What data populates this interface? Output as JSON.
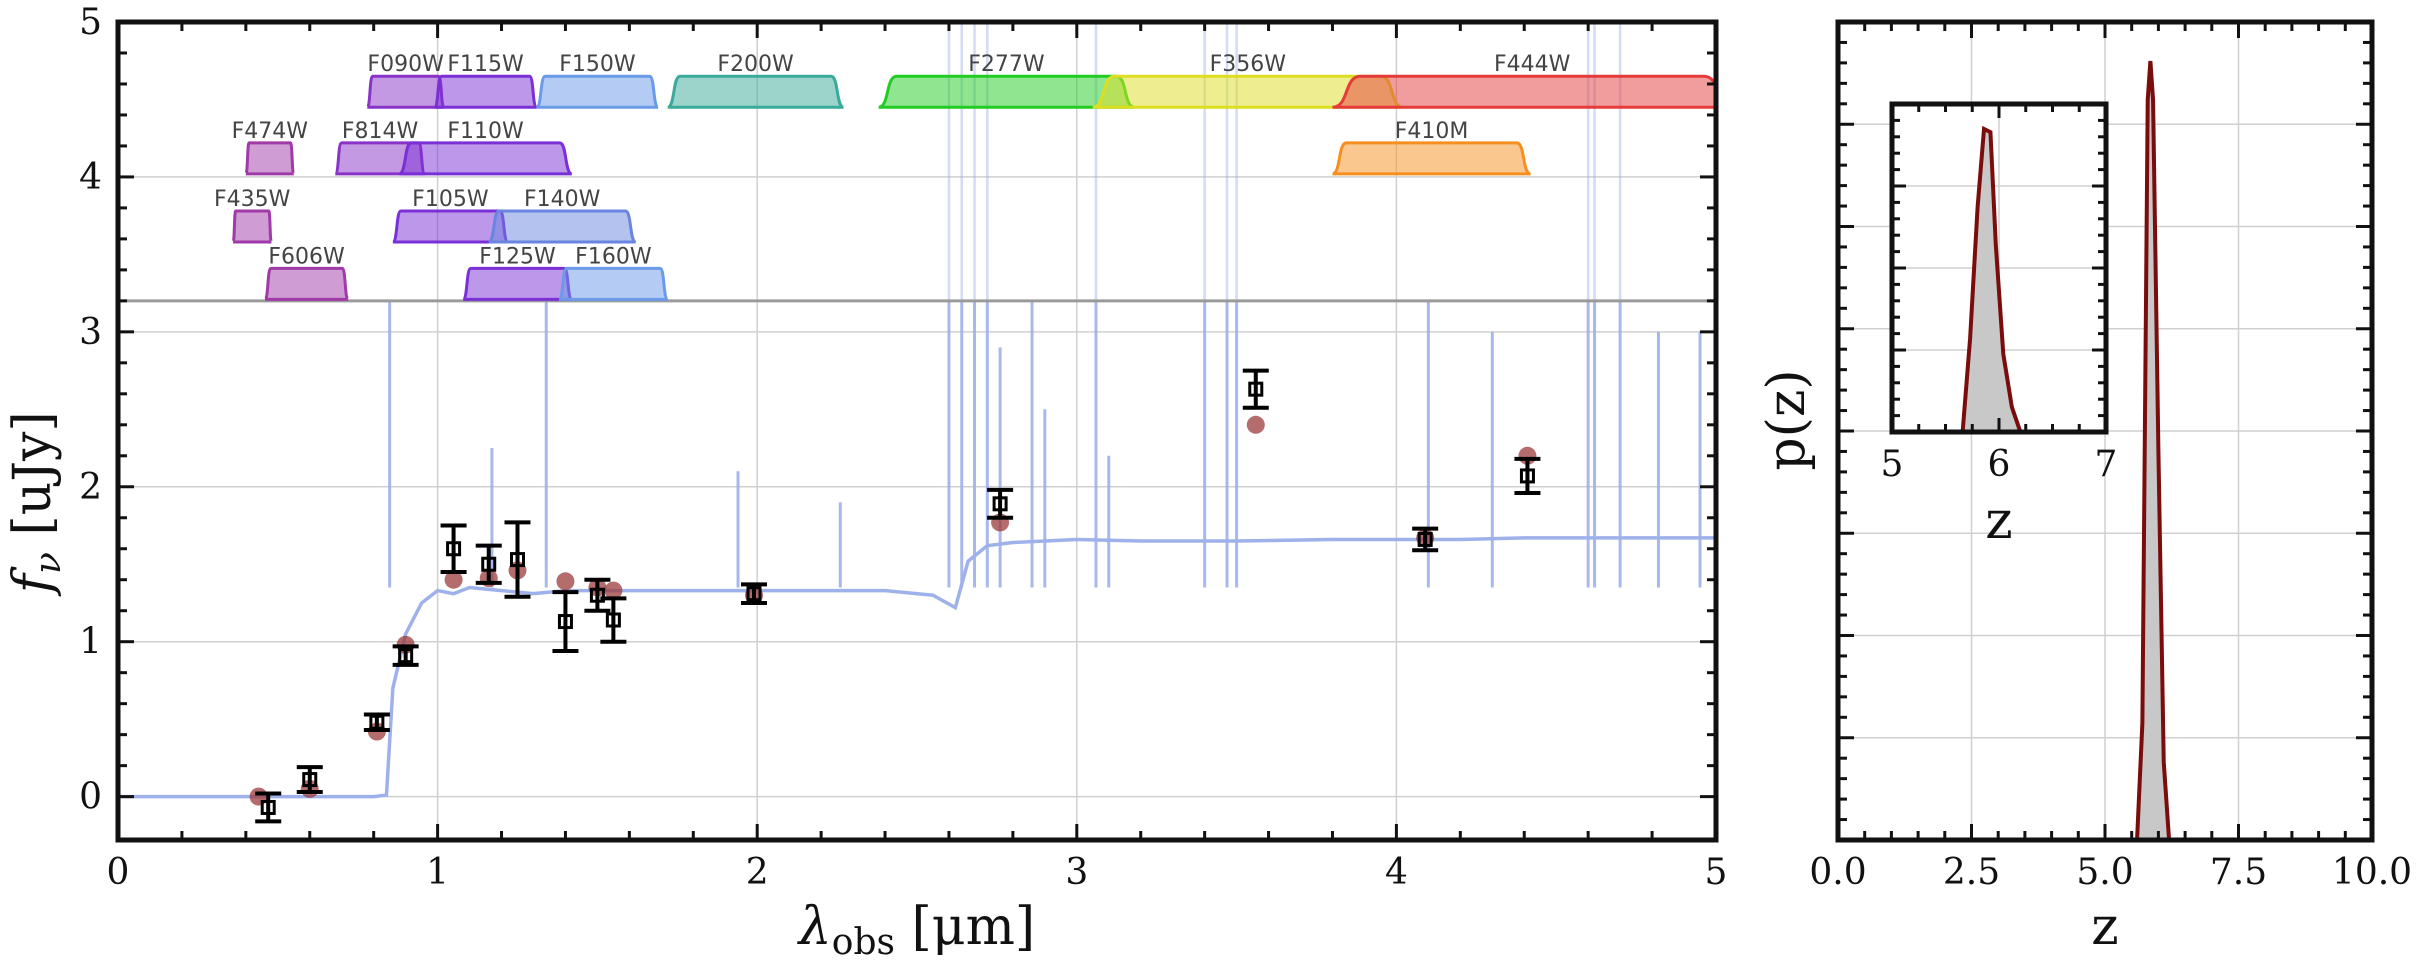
{
  "chart_data": [
    {
      "type": "scatter",
      "xlabel": "λ_obs [μm]",
      "xlabel_base": "λ",
      "xlabel_sub": "obs",
      "xlabel_units": "[μm]",
      "ylabel": "f_ν [uJy]",
      "ylabel_base": "f",
      "ylabel_sub": "ν",
      "ylabel_units": "[uJy]",
      "xlim": [
        0,
        5
      ],
      "ylim": [
        -0.28,
        5
      ],
      "x_ticks": [
        "0",
        "1",
        "2",
        "3",
        "4",
        "5"
      ],
      "y_ticks": [
        "0",
        "1",
        "2",
        "3",
        "4",
        "5"
      ],
      "grid": true,
      "colors": {
        "model": "#9fb1ea",
        "fit": "#9c3b3b",
        "obs": "#000000",
        "frame": "#111111"
      },
      "filters": [
        {
          "name": "F474W",
          "lo": 0.4,
          "hi": 0.55,
          "level": 4.02,
          "color": "#a03aa8"
        },
        {
          "name": "F435W",
          "lo": 0.36,
          "hi": 0.48,
          "level": 3.58,
          "color": "#a03aa8"
        },
        {
          "name": "F606W",
          "lo": 0.46,
          "hi": 0.72,
          "level": 3.21,
          "color": "#a03aa8"
        },
        {
          "name": "F814W",
          "lo": 0.68,
          "hi": 0.96,
          "level": 4.02,
          "color": "#8a33c8"
        },
        {
          "name": "F090W",
          "lo": 0.78,
          "hi": 1.02,
          "level": 4.45,
          "color": "#8a33c8"
        },
        {
          "name": "F115W",
          "lo": 0.99,
          "hi": 1.31,
          "level": 4.45,
          "color": "#7a30d6"
        },
        {
          "name": "F110W",
          "lo": 0.88,
          "hi": 1.42,
          "level": 4.02,
          "color": "#7a30d6"
        },
        {
          "name": "F105W",
          "lo": 0.86,
          "hi": 1.22,
          "level": 3.58,
          "color": "#7a30d6"
        },
        {
          "name": "F140W",
          "lo": 1.16,
          "hi": 1.62,
          "level": 3.58,
          "color": "#6a85e0"
        },
        {
          "name": "F125W",
          "lo": 1.08,
          "hi": 1.42,
          "level": 3.21,
          "color": "#7a30d6"
        },
        {
          "name": "F160W",
          "lo": 1.38,
          "hi": 1.72,
          "level": 3.21,
          "color": "#6a9ae8"
        },
        {
          "name": "F150W",
          "lo": 1.31,
          "hi": 1.69,
          "level": 4.45,
          "color": "#6a9ae8"
        },
        {
          "name": "F200W",
          "lo": 1.72,
          "hi": 2.27,
          "level": 4.45,
          "color": "#3aaa9a"
        },
        {
          "name": "F277W",
          "lo": 2.38,
          "hi": 3.18,
          "level": 4.45,
          "color": "#22cc22"
        },
        {
          "name": "F356W",
          "lo": 3.05,
          "hi": 4.02,
          "level": 4.45,
          "color": "#dddd22"
        },
        {
          "name": "F444W",
          "lo": 3.8,
          "hi": 5.05,
          "level": 4.45,
          "color": "#e63b3b"
        },
        {
          "name": "F410M",
          "lo": 3.8,
          "hi": 4.42,
          "level": 4.02,
          "color": "#f59020"
        }
      ],
      "model_sed": {
        "points": [
          [
            0.0,
            0.0
          ],
          [
            0.8,
            0.0
          ],
          [
            0.84,
            0.01
          ],
          [
            0.86,
            0.7
          ],
          [
            0.9,
            1.05
          ],
          [
            0.95,
            1.25
          ],
          [
            1.0,
            1.33
          ],
          [
            1.05,
            1.31
          ],
          [
            1.1,
            1.35
          ],
          [
            1.2,
            1.33
          ],
          [
            1.3,
            1.31
          ],
          [
            1.4,
            1.33
          ],
          [
            1.5,
            1.33
          ],
          [
            1.6,
            1.33
          ],
          [
            1.8,
            1.33
          ],
          [
            2.0,
            1.33
          ],
          [
            2.2,
            1.33
          ],
          [
            2.4,
            1.33
          ],
          [
            2.55,
            1.3
          ],
          [
            2.62,
            1.22
          ],
          [
            2.66,
            1.52
          ],
          [
            2.72,
            1.62
          ],
          [
            2.8,
            1.64
          ],
          [
            3.0,
            1.66
          ],
          [
            3.2,
            1.65
          ],
          [
            3.5,
            1.65
          ],
          [
            3.8,
            1.66
          ],
          [
            4.0,
            1.66
          ],
          [
            4.2,
            1.66
          ],
          [
            4.4,
            1.67
          ],
          [
            4.6,
            1.67
          ],
          [
            4.8,
            1.67
          ],
          [
            5.0,
            1.67
          ]
        ],
        "lines": [
          [
            0.85,
            3.2
          ],
          [
            1.34,
            3.2
          ],
          [
            1.17,
            2.25
          ],
          [
            1.94,
            2.1
          ],
          [
            2.26,
            1.9
          ],
          [
            2.6,
            3.2
          ],
          [
            2.64,
            3.2
          ],
          [
            2.68,
            3.2
          ],
          [
            2.72,
            3.2
          ],
          [
            2.76,
            2.9
          ],
          [
            2.86,
            3.2
          ],
          [
            2.9,
            2.5
          ],
          [
            3.06,
            3.2
          ],
          [
            3.1,
            2.2
          ],
          [
            3.4,
            3.2
          ],
          [
            3.47,
            3.2
          ],
          [
            3.5,
            3.2
          ],
          [
            4.1,
            3.2
          ],
          [
            4.3,
            3.0
          ],
          [
            4.6,
            3.2
          ],
          [
            4.62,
            3.2
          ],
          [
            4.7,
            3.2
          ],
          [
            4.82,
            3.0
          ],
          [
            4.95,
            3.0
          ],
          [
            5.0,
            3.2
          ]
        ]
      },
      "fit_points": [
        [
          0.44,
          0.0
        ],
        [
          0.6,
          0.05
        ],
        [
          0.81,
          0.42
        ],
        [
          0.9,
          0.98
        ],
        [
          1.05,
          1.4
        ],
        [
          1.16,
          1.41
        ],
        [
          1.25,
          1.46
        ],
        [
          1.4,
          1.39
        ],
        [
          1.5,
          1.35
        ],
        [
          1.55,
          1.33
        ],
        [
          1.99,
          1.3
        ],
        [
          2.76,
          1.77
        ],
        [
          3.56,
          2.4
        ],
        [
          4.09,
          1.67
        ],
        [
          4.41,
          2.2
        ]
      ],
      "observations": [
        {
          "x": 0.47,
          "y": -0.07,
          "yerr": 0.09
        },
        {
          "x": 0.6,
          "y": 0.11,
          "yerr": 0.08
        },
        {
          "x": 0.81,
          "y": 0.48,
          "yerr": 0.05
        },
        {
          "x": 0.9,
          "y": 0.91,
          "yerr": 0.06
        },
        {
          "x": 1.05,
          "y": 1.6,
          "yerr": 0.15
        },
        {
          "x": 1.16,
          "y": 1.5,
          "yerr": 0.12
        },
        {
          "x": 1.25,
          "y": 1.53,
          "yerr": 0.24
        },
        {
          "x": 1.4,
          "y": 1.13,
          "yerr": 0.19
        },
        {
          "x": 1.5,
          "y": 1.3,
          "yerr": 0.1
        },
        {
          "x": 1.55,
          "y": 1.14,
          "yerr": 0.14
        },
        {
          "x": 1.99,
          "y": 1.31,
          "yerr": 0.06
        },
        {
          "x": 2.76,
          "y": 1.89,
          "yerr": 0.09
        },
        {
          "x": 3.56,
          "y": 2.63,
          "yerr": 0.12
        },
        {
          "x": 4.09,
          "y": 1.66,
          "yerr": 0.07
        },
        {
          "x": 4.41,
          "y": 2.07,
          "yerr": 0.11
        }
      ]
    },
    {
      "type": "line",
      "xlabel": "z",
      "ylabel": "p(z)",
      "xlim": [
        0,
        10
      ],
      "ylim": [
        0,
        1.05
      ],
      "x_ticks": [
        "0.0",
        "2.5",
        "5.0",
        "7.5",
        "10.0"
      ],
      "grid": true,
      "colors": {
        "line": "#7a0c0c",
        "fill": "#c8c8c8"
      },
      "pdf": [
        [
          5.6,
          0.0
        ],
        [
          5.7,
          0.15
        ],
        [
          5.8,
          0.95
        ],
        [
          5.85,
          1.0
        ],
        [
          5.9,
          0.95
        ],
        [
          6.0,
          0.5
        ],
        [
          6.1,
          0.1
        ],
        [
          6.2,
          0.0
        ]
      ]
    },
    {
      "type": "line",
      "xlabel": "z",
      "xlim": [
        5,
        7
      ],
      "ylim": [
        0,
        1.05
      ],
      "x_ticks": [
        "5",
        "6",
        "7"
      ],
      "grid": true,
      "colors": {
        "line": "#7a0c0c",
        "fill": "#c8c8c8"
      },
      "pdf": [
        [
          5.66,
          0.0
        ],
        [
          5.73,
          0.3
        ],
        [
          5.8,
          0.72
        ],
        [
          5.86,
          0.97
        ],
        [
          5.92,
          0.96
        ],
        [
          5.97,
          0.6
        ],
        [
          6.04,
          0.25
        ],
        [
          6.12,
          0.08
        ],
        [
          6.2,
          0.0
        ]
      ]
    }
  ]
}
